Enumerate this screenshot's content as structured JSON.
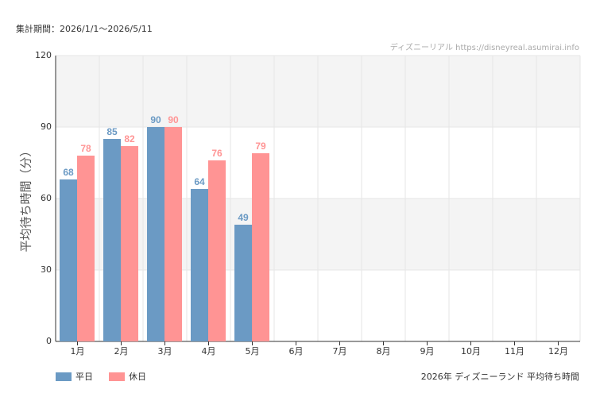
{
  "chart_data": {
    "type": "bar",
    "period": "集計期間：2026/1/1〜2026/5/11",
    "watermark": "ディズニーリアル https://disneyreal.asumirai.info",
    "caption": "2026年 ディズニーランド 平均待ち時間",
    "y_label": "平均待ち時間（分）",
    "categories": [
      "1月",
      "2月",
      "3月",
      "4月",
      "5月",
      "6月",
      "7月",
      "8月",
      "9月",
      "10月",
      "11月",
      "12月"
    ],
    "series": [
      {
        "name": "平日",
        "color": "#6b9ac4",
        "values": [
          68,
          85,
          90,
          64,
          49,
          null,
          null,
          null,
          null,
          null,
          null,
          null
        ]
      },
      {
        "name": "休日",
        "color": "#ff9494",
        "values": [
          78,
          82,
          90,
          76,
          79,
          null,
          null,
          null,
          null,
          null,
          null,
          null
        ]
      }
    ],
    "ylim": [
      0,
      120
    ],
    "yticks": [
      0,
      30,
      60,
      90,
      120
    ],
    "grid": true
  }
}
